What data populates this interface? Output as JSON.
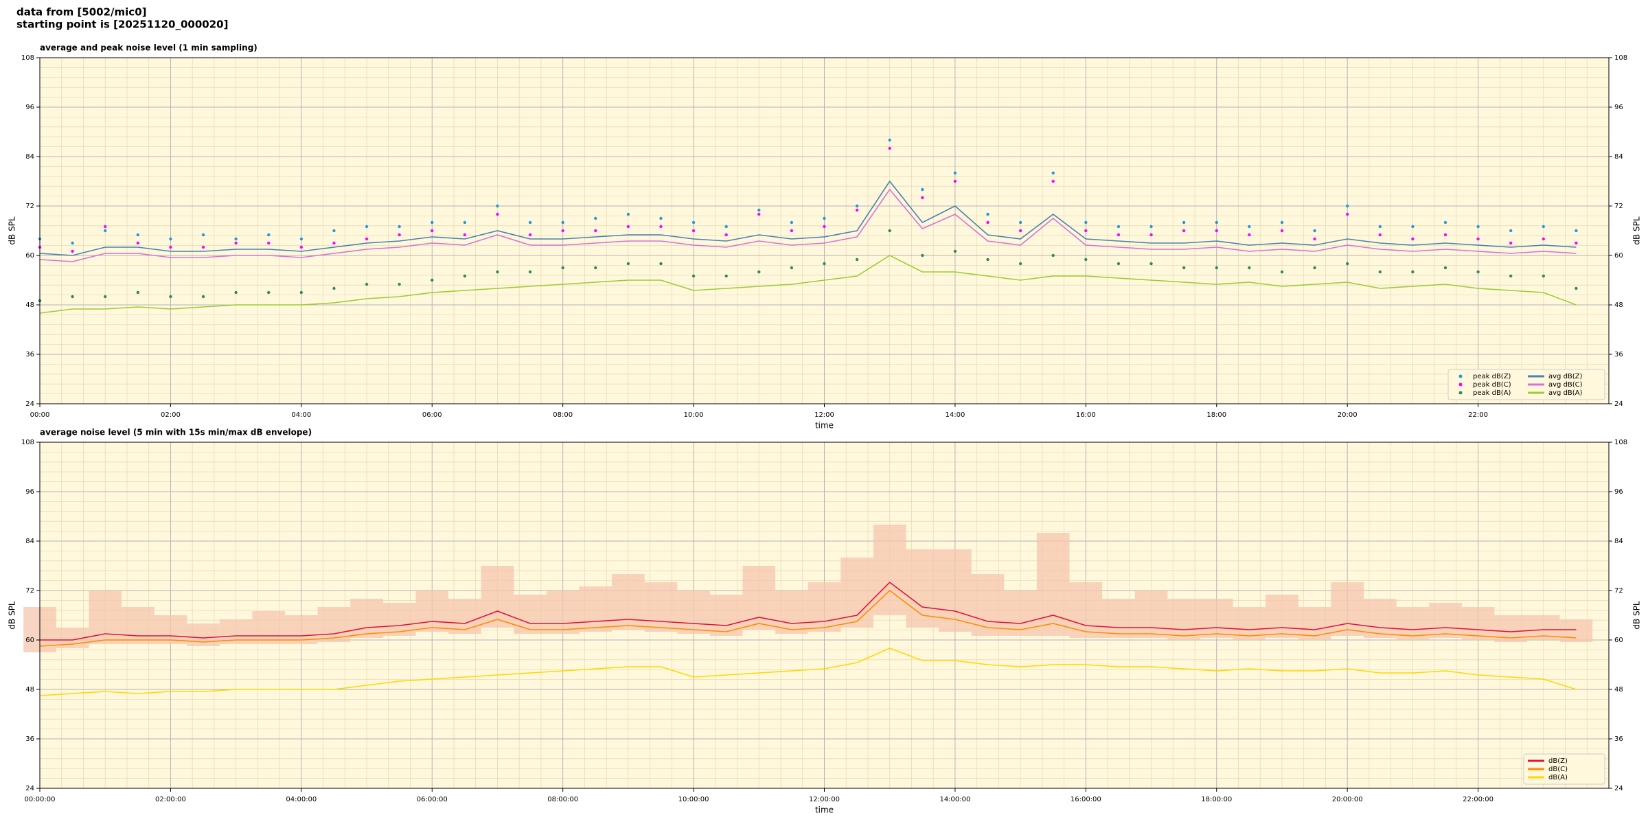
{
  "header": {
    "lines": [
      "data from [5002/mic0]",
      "starting point is [20251120_000020]"
    ]
  },
  "chart_data": [
    {
      "type": "line",
      "title": "average and peak noise level (1 min sampling)",
      "xlabel": "time",
      "ylabel": "dB SPL",
      "xlim": [
        0,
        24
      ],
      "ylim": [
        24,
        108
      ],
      "xticks": [
        {
          "value": 0,
          "label": "00:00"
        },
        {
          "value": 2,
          "label": "02:00"
        },
        {
          "value": 4,
          "label": "04:00"
        },
        {
          "value": 6,
          "label": "06:00"
        },
        {
          "value": 8,
          "label": "08:00"
        },
        {
          "value": 10,
          "label": "10:00"
        },
        {
          "value": 12,
          "label": "12:00"
        },
        {
          "value": 14,
          "label": "14:00"
        },
        {
          "value": 16,
          "label": "16:00"
        },
        {
          "value": 18,
          "label": "18:00"
        },
        {
          "value": 20,
          "label": "20:00"
        },
        {
          "value": 22,
          "label": "22:00"
        }
      ],
      "yticks": [
        24,
        36,
        48,
        60,
        72,
        84,
        96,
        108
      ],
      "grid": true,
      "legend": "lower right",
      "legend_columns": 2,
      "x": [
        0,
        0.5,
        1,
        1.5,
        2,
        2.5,
        3,
        3.5,
        4,
        4.5,
        5,
        5.5,
        6,
        6.5,
        7,
        7.5,
        8,
        8.5,
        9,
        9.5,
        10,
        10.5,
        11,
        11.5,
        12,
        12.5,
        13,
        13.5,
        14,
        14.5,
        15,
        15.5,
        16,
        16.5,
        17,
        17.5,
        18,
        18.5,
        19,
        19.5,
        20,
        20.5,
        21,
        21.5,
        22,
        22.5,
        23,
        23.5
      ],
      "series": [
        {
          "name": "peak dB(Z)",
          "color": "#1f9bd9",
          "marker": "dot",
          "values": [
            64,
            63,
            66,
            65,
            64,
            65,
            64,
            65,
            64,
            66,
            67,
            67,
            68,
            68,
            72,
            68,
            68,
            69,
            70,
            69,
            68,
            67,
            71,
            68,
            69,
            72,
            88,
            76,
            80,
            70,
            68,
            80,
            68,
            67,
            67,
            68,
            68,
            67,
            68,
            66,
            72,
            67,
            67,
            68,
            67,
            66,
            67,
            66
          ]
        },
        {
          "name": "peak dB(C)",
          "color": "#ff00ff",
          "marker": "dot",
          "values": [
            62,
            61,
            67,
            63,
            62,
            62,
            63,
            63,
            62,
            63,
            64,
            65,
            66,
            65,
            70,
            65,
            66,
            66,
            67,
            67,
            66,
            65,
            70,
            66,
            67,
            71,
            86,
            74,
            78,
            68,
            66,
            78,
            66,
            65,
            65,
            66,
            66,
            65,
            66,
            64,
            70,
            65,
            64,
            65,
            64,
            63,
            64,
            63
          ]
        },
        {
          "name": "peak dB(A)",
          "color": "#2e8b57",
          "marker": "dot",
          "values": [
            49,
            50,
            50,
            51,
            50,
            50,
            51,
            51,
            51,
            52,
            53,
            53,
            54,
            55,
            56,
            56,
            57,
            57,
            58,
            58,
            55,
            55,
            56,
            57,
            58,
            59,
            66,
            60,
            61,
            59,
            58,
            60,
            59,
            58,
            58,
            57,
            57,
            57,
            56,
            57,
            58,
            56,
            56,
            57,
            56,
            55,
            55,
            52
          ]
        },
        {
          "name": "avg dB(Z)",
          "color": "#4682b4",
          "values": [
            60.5,
            60,
            62,
            62,
            61,
            61,
            61.5,
            61.5,
            61,
            62,
            63,
            63.5,
            64.5,
            64,
            66,
            64,
            64,
            64.5,
            65,
            65,
            64,
            63.5,
            65,
            64,
            64.5,
            66,
            78,
            68,
            72,
            65,
            64,
            70,
            64,
            63.5,
            63,
            63,
            63.5,
            62.5,
            63,
            62.5,
            64,
            63,
            62.5,
            63,
            62.5,
            62,
            62.5,
            62
          ]
        },
        {
          "name": "avg dB(C)",
          "color": "#da70d6",
          "values": [
            59,
            58.5,
            60.5,
            60.5,
            59.5,
            59.5,
            60,
            60,
            59.5,
            60.5,
            61.5,
            62,
            63,
            62.5,
            65,
            62.5,
            62.5,
            63,
            63.5,
            63.5,
            62.5,
            62,
            63.5,
            62.5,
            63,
            64.5,
            76,
            66.5,
            70,
            63.5,
            62.5,
            69,
            62.5,
            62,
            61.5,
            61.5,
            62,
            61,
            61.5,
            61,
            62.5,
            61.5,
            61,
            61.5,
            61,
            60.5,
            61,
            60.5
          ]
        },
        {
          "name": "avg dB(A)",
          "color": "#9acd32",
          "values": [
            46,
            47,
            47,
            47.5,
            47,
            47.5,
            48,
            48,
            48,
            48.5,
            49.5,
            50,
            51,
            51.5,
            52,
            52.5,
            53,
            53.5,
            54,
            54,
            51.5,
            52,
            52.5,
            53,
            54,
            55,
            60,
            56,
            56,
            55,
            54,
            55,
            55,
            54.5,
            54,
            53.5,
            53,
            53.5,
            52.5,
            53,
            53.5,
            52,
            52.5,
            53,
            52,
            51.5,
            51,
            48
          ]
        }
      ]
    },
    {
      "type": "line",
      "title": "average noise level (5 min with 15s min/max dB envelope)",
      "xlabel": "time",
      "ylabel": "dB SPL",
      "xlim": [
        0,
        24
      ],
      "ylim": [
        24,
        108
      ],
      "xticks": [
        {
          "value": 0,
          "label": "00:00:00"
        },
        {
          "value": 2,
          "label": "02:00:00"
        },
        {
          "value": 4,
          "label": "04:00:00"
        },
        {
          "value": 6,
          "label": "06:00:00"
        },
        {
          "value": 8,
          "label": "08:00:00"
        },
        {
          "value": 10,
          "label": "10:00:00"
        },
        {
          "value": 12,
          "label": "12:00:00"
        },
        {
          "value": 14,
          "label": "14:00:00"
        },
        {
          "value": 16,
          "label": "16:00:00"
        },
        {
          "value": 18,
          "label": "18:00:00"
        },
        {
          "value": 20,
          "label": "20:00:00"
        },
        {
          "value": 22,
          "label": "22:00:00"
        }
      ],
      "yticks": [
        24,
        36,
        48,
        60,
        72,
        84,
        96,
        108
      ],
      "grid": true,
      "legend": "lower right",
      "legend_columns": 1,
      "x": [
        0,
        0.5,
        1,
        1.5,
        2,
        2.5,
        3,
        3.5,
        4,
        4.5,
        5,
        5.5,
        6,
        6.5,
        7,
        7.5,
        8,
        8.5,
        9,
        9.5,
        10,
        10.5,
        11,
        11.5,
        12,
        12.5,
        13,
        13.5,
        14,
        14.5,
        15,
        15.5,
        16,
        16.5,
        17,
        17.5,
        18,
        18.5,
        19,
        19.5,
        20,
        20.5,
        21,
        21.5,
        22,
        22.5,
        23,
        23.5
      ],
      "envelope": {
        "color": "#f5c6ae",
        "lower": [
          57,
          58,
          59,
          59,
          59,
          58.5,
          59,
          59,
          59,
          59.5,
          60.5,
          61,
          62,
          61.5,
          63,
          61.5,
          61.5,
          62,
          62.5,
          62,
          61.5,
          61,
          62.5,
          61.5,
          62,
          63,
          66,
          63,
          62,
          61,
          61,
          61,
          60.5,
          60.5,
          60.5,
          60,
          60.5,
          60,
          60.5,
          60,
          61,
          60.5,
          60,
          60.5,
          60,
          59.5,
          60,
          59.5
        ],
        "upper": [
          68,
          63,
          72,
          68,
          66,
          64,
          65,
          67,
          66,
          68,
          70,
          69,
          72,
          70,
          78,
          71,
          72,
          73,
          76,
          74,
          72,
          71,
          78,
          72,
          74,
          80,
          88,
          82,
          82,
          76,
          72,
          86,
          74,
          70,
          72,
          70,
          70,
          68,
          71,
          68,
          74,
          70,
          68,
          69,
          68,
          66,
          66,
          65
        ]
      },
      "series": [
        {
          "name": "dB(Z)",
          "color": "#dc143c",
          "values": [
            60,
            60,
            61.5,
            61,
            61,
            60.5,
            61,
            61,
            61,
            61.5,
            63,
            63.5,
            64.5,
            64,
            67,
            64,
            64,
            64.5,
            65,
            64.5,
            64,
            63.5,
            65.5,
            64,
            64.5,
            66,
            74,
            68,
            67,
            64.5,
            64,
            66,
            63.5,
            63,
            63,
            62.5,
            63,
            62.5,
            63,
            62.5,
            64,
            63,
            62.5,
            63,
            62.5,
            62,
            62.5,
            62.5
          ]
        },
        {
          "name": "dB(C)",
          "color": "#ff8c00",
          "values": [
            58.5,
            59,
            60,
            60,
            60,
            59.5,
            60,
            60,
            60,
            60.5,
            61.5,
            62,
            63,
            62.5,
            65,
            62.5,
            62.5,
            63,
            63.5,
            63,
            62.5,
            62,
            64,
            62.5,
            63,
            64.5,
            72,
            66,
            65,
            63,
            62.5,
            64,
            62,
            61.5,
            61.5,
            61,
            61.5,
            61,
            61.5,
            61,
            62.5,
            61.5,
            61,
            61.5,
            61,
            60.5,
            61,
            60.5
          ]
        },
        {
          "name": "dB(A)",
          "color": "#ffd700",
          "values": [
            46.5,
            47,
            47.5,
            47,
            47.5,
            47.5,
            48,
            48,
            48,
            48,
            49,
            50,
            50.5,
            51,
            51.5,
            52,
            52.5,
            53,
            53.5,
            53.5,
            51,
            51.5,
            52,
            52.5,
            53,
            54.5,
            58,
            55,
            55,
            54,
            53.5,
            54,
            54,
            53.5,
            53.5,
            53,
            52.5,
            53,
            52.5,
            52.5,
            53,
            52,
            52,
            52.5,
            51.5,
            51,
            50.5,
            48
          ]
        }
      ]
    }
  ]
}
